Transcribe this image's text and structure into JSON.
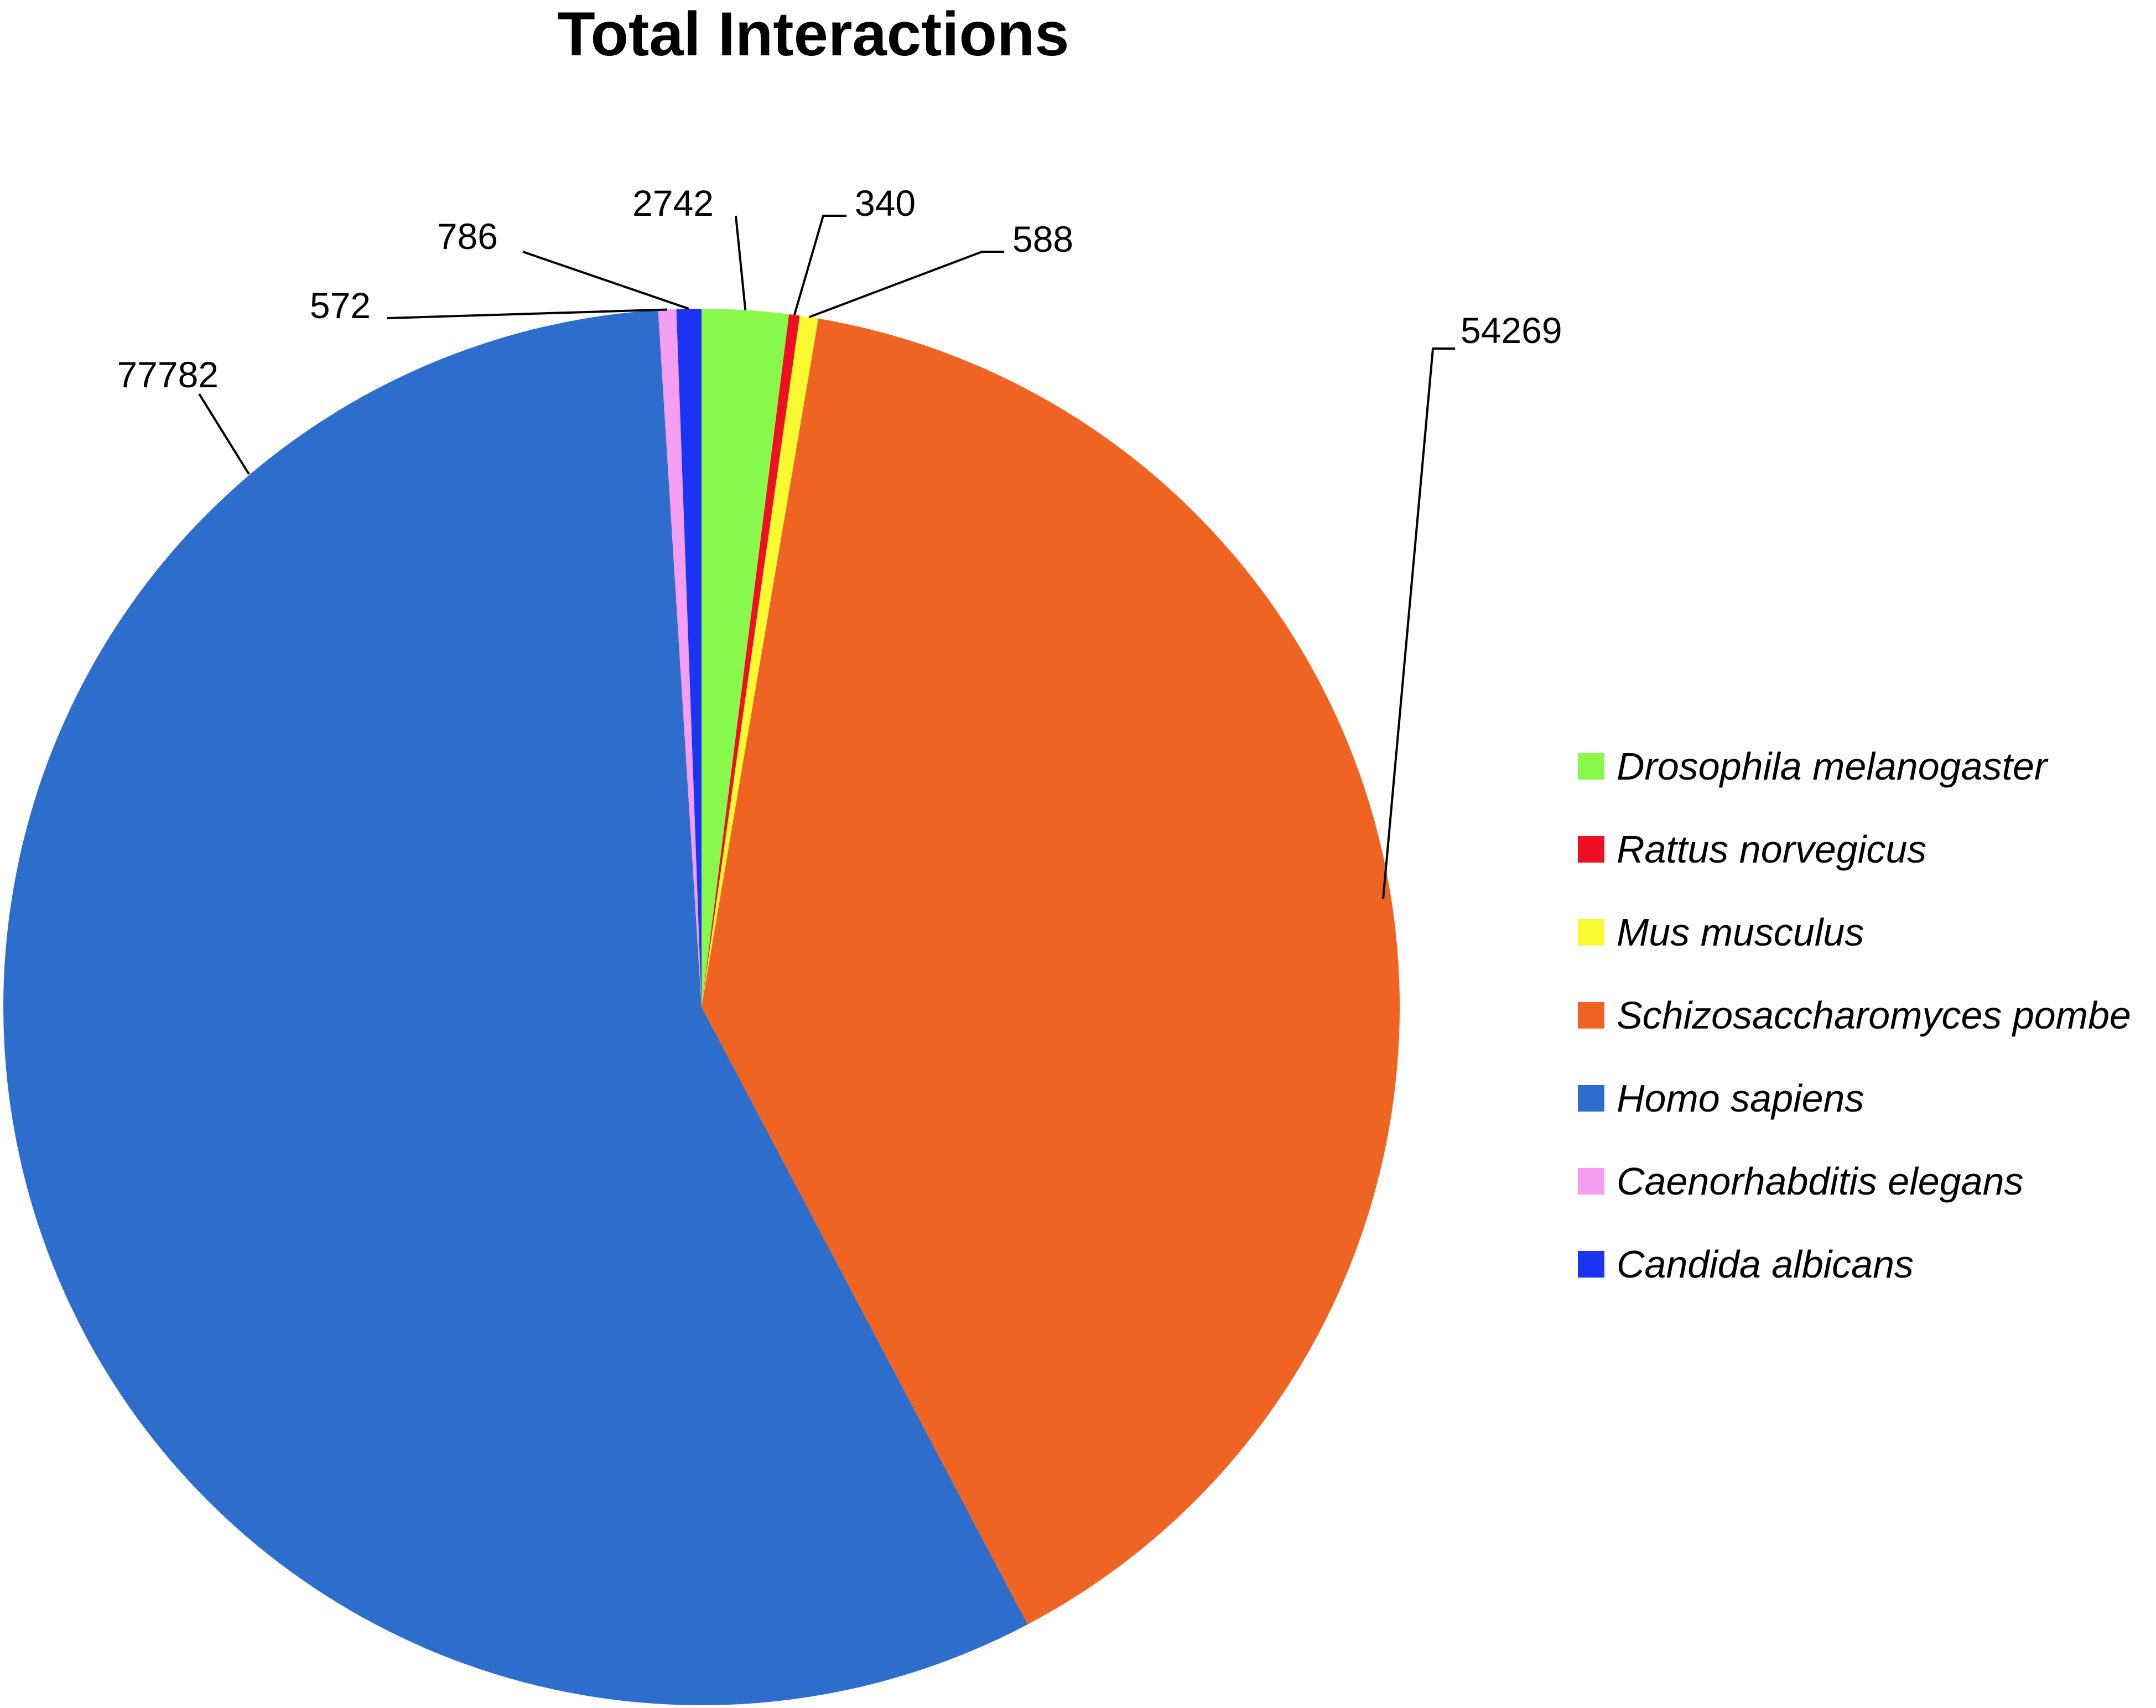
{
  "chart_data": {
    "type": "pie",
    "title": "Total Interactions",
    "start_angle_deg": 0,
    "direction": "clockwise",
    "slices": [
      {
        "name": "Drosophila melanogaster",
        "value": 2742,
        "label": "2742",
        "color": "#88f94a"
      },
      {
        "name": "Rattus norvegicus",
        "value": 340,
        "label": "340",
        "color": "#ee1022"
      },
      {
        "name": "Mus musculus",
        "value": 588,
        "label": "588",
        "color": "#fafa32"
      },
      {
        "name": "Schizosaccharomyces pombe",
        "value": 54269,
        "label": "54269",
        "color": "#f06423"
      },
      {
        "name": "Homo sapiens",
        "value": 77782,
        "label": "77782",
        "color": "#2d6dcb"
      },
      {
        "name": "Caenorhabditis elegans",
        "value": 572,
        "label": "572",
        "color": "#f59df2"
      },
      {
        "name": "Candida albicans",
        "value": 786,
        "label": "786",
        "color": "#1b33f2"
      }
    ],
    "legend_position": "right",
    "data_labels": "outside with leader lines"
  }
}
